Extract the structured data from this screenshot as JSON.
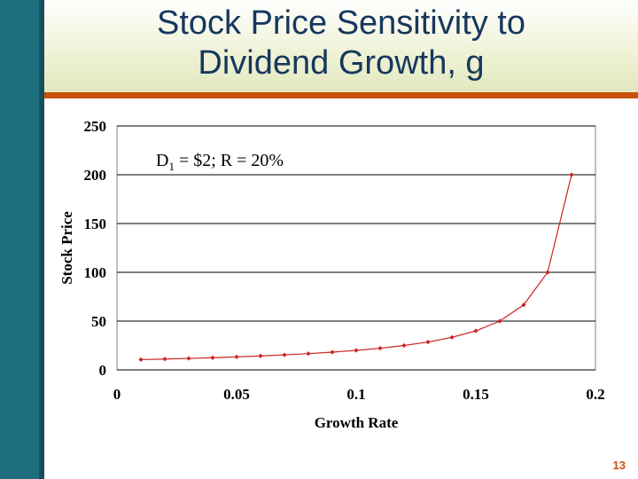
{
  "slide": {
    "title_line1": "Stock Price Sensitivity to",
    "title_line2": "Dividend Growth, g",
    "page_number": "13",
    "accent_color": "#c8510c",
    "title_color": "#17375e",
    "sidebar_color": "#1f6e7e"
  },
  "annotation": {
    "d_symbol": "D",
    "d_subscript": "1",
    "rest": " = $2; R = 20%"
  },
  "chart_data": {
    "type": "line",
    "title": "",
    "xlabel": "Growth Rate",
    "ylabel": "Stock Price",
    "xlim": [
      0,
      0.2
    ],
    "ylim": [
      0,
      250
    ],
    "xticks": [
      0,
      0.05,
      0.1,
      0.15,
      0.2
    ],
    "xtick_labels": [
      "0",
      "0.05",
      "0.1",
      "0.15",
      "0.2"
    ],
    "yticks": [
      0,
      50,
      100,
      150,
      200,
      250
    ],
    "ytick_labels": [
      "0",
      "50",
      "100",
      "150",
      "200",
      "250"
    ],
    "grid": true,
    "line_color": "#cc2222",
    "series": [
      {
        "name": "Stock Price",
        "x": [
          0.01,
          0.02,
          0.03,
          0.04,
          0.05,
          0.06,
          0.07,
          0.08,
          0.09,
          0.1,
          0.11,
          0.12,
          0.13,
          0.14,
          0.15,
          0.16,
          0.17,
          0.18,
          0.19
        ],
        "values": [
          10.53,
          11.11,
          11.76,
          12.5,
          13.33,
          14.29,
          15.38,
          16.67,
          18.18,
          20.0,
          22.22,
          25.0,
          28.57,
          33.33,
          40.0,
          50.0,
          66.67,
          100.0,
          200.0
        ]
      }
    ]
  }
}
